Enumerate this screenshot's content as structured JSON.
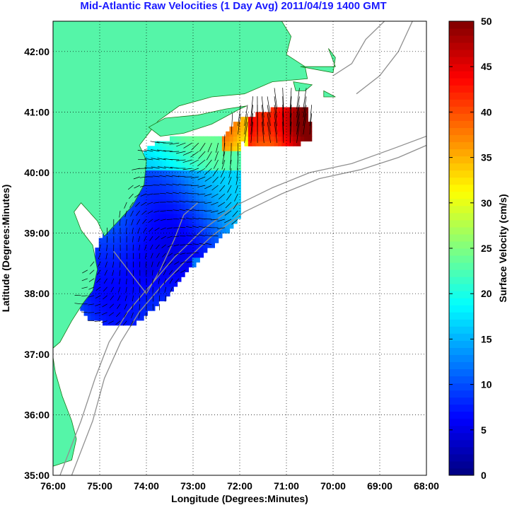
{
  "title": "Mid-Atlantic Raw Velocities (1 Day Avg) 2011/04/19 1400 GMT",
  "map": {
    "xlabel": "Longitude (Degrees:Minutes)",
    "ylabel": "Latitude (Degrees:Minutes)",
    "lon_range": [
      -76,
      -68
    ],
    "lat_range": [
      35,
      42.5
    ],
    "x_ticks": [
      {
        "v": -76,
        "label": "76:00"
      },
      {
        "v": -75,
        "label": "75:00"
      },
      {
        "v": -74,
        "label": "74:00"
      },
      {
        "v": -73,
        "label": "73:00"
      },
      {
        "v": -72,
        "label": "72:00"
      },
      {
        "v": -71,
        "label": "71:00"
      },
      {
        "v": -70,
        "label": "70:00"
      },
      {
        "v": -69,
        "label": "69:00"
      },
      {
        "v": -68,
        "label": "68:00"
      }
    ],
    "y_ticks": [
      {
        "v": 35,
        "label": "35:00"
      },
      {
        "v": 36,
        "label": "36:00"
      },
      {
        "v": 37,
        "label": "37:00"
      },
      {
        "v": 38,
        "label": "38:00"
      },
      {
        "v": 39,
        "label": "39:00"
      },
      {
        "v": 40,
        "label": "40:00"
      },
      {
        "v": 41,
        "label": "41:00"
      },
      {
        "v": 42,
        "label": "42:00"
      }
    ],
    "grid": "dotted",
    "colors": {
      "land": "#55f5a8",
      "land_edge": "#1a7a1a",
      "isobath": "#909090",
      "arrow": "#000000"
    }
  },
  "colorbar": {
    "label": "Surface Velocity (cm/s)",
    "range": [
      0,
      50
    ],
    "ticks": [
      {
        "v": 0,
        "label": "0"
      },
      {
        "v": 5,
        "label": "5"
      },
      {
        "v": 10,
        "label": "10"
      },
      {
        "v": 15,
        "label": "15"
      },
      {
        "v": 20,
        "label": "20"
      },
      {
        "v": 25,
        "label": "25"
      },
      {
        "v": 30,
        "label": "30"
      },
      {
        "v": 35,
        "label": "35"
      },
      {
        "v": 40,
        "label": "40"
      },
      {
        "v": 45,
        "label": "45"
      },
      {
        "v": 50,
        "label": "50"
      }
    ],
    "colormap": "jet"
  }
}
